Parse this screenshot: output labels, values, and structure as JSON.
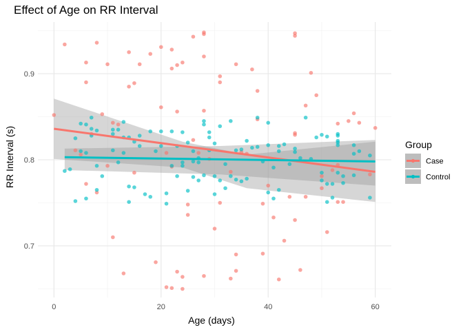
{
  "chart_data": {
    "type": "scatter",
    "title": "Effect of Age on RR Interval",
    "xlabel": "Age (days)",
    "ylabel": "RR Interval (s)",
    "xlim": [
      -3,
      63
    ],
    "ylim": [
      0.64,
      0.96
    ],
    "x_ticks": [
      0,
      20,
      40,
      60
    ],
    "y_ticks": [
      0.7,
      0.8,
      0.9
    ],
    "grid": true,
    "legend": {
      "title": "Group",
      "placement": "right"
    },
    "series": [
      {
        "name": "Case",
        "color": "#F8766D",
        "points": [
          [
            0,
            0.852
          ],
          [
            2,
            0.934
          ],
          [
            4,
            0.811
          ],
          [
            5,
            0.806
          ],
          [
            6,
            0.913
          ],
          [
            6,
            0.89
          ],
          [
            6,
            0.772
          ],
          [
            7,
            0.83
          ],
          [
            8,
            0.936
          ],
          [
            8,
            0.762
          ],
          [
            9,
            0.853
          ],
          [
            10,
            0.911
          ],
          [
            10,
            0.793
          ],
          [
            11,
            0.71
          ],
          [
            11,
            0.843
          ],
          [
            12,
            0.841
          ],
          [
            13,
            0.668
          ],
          [
            14,
            0.925
          ],
          [
            14,
            0.885
          ],
          [
            15,
            0.889
          ],
          [
            15,
            0.785
          ],
          [
            16,
            0.911
          ],
          [
            18,
            0.923
          ],
          [
            19,
            0.681
          ],
          [
            20,
            0.931
          ],
          [
            20,
            0.861
          ],
          [
            21,
            0.652
          ],
          [
            21,
            0.808
          ],
          [
            22,
            0.928
          ],
          [
            22,
            0.906
          ],
          [
            22,
            0.651
          ],
          [
            22,
            0.792
          ],
          [
            23,
            0.91
          ],
          [
            23,
            0.856
          ],
          [
            23,
            0.67
          ],
          [
            24,
            0.913
          ],
          [
            24,
            0.65
          ],
          [
            24,
            0.664
          ],
          [
            25,
            0.748
          ],
          [
            25,
            0.736
          ],
          [
            26,
            0.943
          ],
          [
            26,
            0.823
          ],
          [
            27,
            0.808
          ],
          [
            28,
            0.948
          ],
          [
            28,
            0.946
          ],
          [
            28,
            0.92
          ],
          [
            28,
            0.857
          ],
          [
            28,
            0.665
          ],
          [
            29,
            0.801
          ],
          [
            30,
            0.72
          ],
          [
            31,
            0.897
          ],
          [
            31,
            0.89
          ],
          [
            31,
            0.75
          ],
          [
            33,
            0.786
          ],
          [
            33,
            0.662
          ],
          [
            34,
            0.911
          ],
          [
            34,
            0.69
          ],
          [
            34,
            0.671
          ],
          [
            35,
            0.809
          ],
          [
            36,
            0.807
          ],
          [
            37,
            0.905
          ],
          [
            38,
            0.88
          ],
          [
            38,
            0.847
          ],
          [
            39,
            0.749
          ],
          [
            39,
            0.691
          ],
          [
            40,
            0.77
          ],
          [
            41,
            0.733
          ],
          [
            42,
            0.661
          ],
          [
            43,
            0.706
          ],
          [
            44,
            0.757
          ],
          [
            45,
            0.947
          ],
          [
            45,
            0.944
          ],
          [
            45,
            0.831
          ],
          [
            45,
            0.829
          ],
          [
            45,
            0.73
          ],
          [
            46,
            0.672
          ],
          [
            47,
            0.863
          ],
          [
            47,
            0.757
          ],
          [
            48,
            0.901
          ],
          [
            49,
            0.875
          ],
          [
            50,
            0.767
          ],
          [
            50,
            0.781
          ],
          [
            51,
            0.716
          ],
          [
            52,
            0.788
          ],
          [
            53,
            0.842
          ],
          [
            53,
            0.794
          ],
          [
            53,
            0.751
          ],
          [
            54,
            0.751
          ],
          [
            55,
            0.845
          ],
          [
            56,
            0.854
          ],
          [
            57,
            0.843
          ],
          [
            59,
            0.783
          ],
          [
            60,
            0.837
          ]
        ],
        "trend": {
          "x": [
            0,
            60
          ],
          "y": [
            0.836,
            0.786
          ]
        },
        "band": {
          "upper": [
            0.871,
            0.821,
            0.806,
            0.821
          ],
          "lower": [
            0.801,
            0.791,
            0.767,
            0.751
          ],
          "x": [
            0,
            24,
            36,
            60
          ]
        }
      },
      {
        "name": "Control",
        "color": "#00BFC4",
        "points": [
          [
            2,
            0.787
          ],
          [
            3,
            0.789
          ],
          [
            4,
            0.752
          ],
          [
            4,
            0.825
          ],
          [
            5,
            0.842
          ],
          [
            5,
            0.81
          ],
          [
            6,
            0.841
          ],
          [
            6,
            0.808
          ],
          [
            6,
            0.755
          ],
          [
            7,
            0.849
          ],
          [
            7,
            0.836
          ],
          [
            7,
            0.828
          ],
          [
            8,
            0.834
          ],
          [
            8,
            0.793
          ],
          [
            8,
            0.765
          ],
          [
            9,
            0.781
          ],
          [
            11,
            0.835
          ],
          [
            11,
            0.83
          ],
          [
            11,
            0.811
          ],
          [
            12,
            0.835
          ],
          [
            12,
            0.797
          ],
          [
            13,
            0.844
          ],
          [
            13,
            0.808
          ],
          [
            13,
            0.826
          ],
          [
            14,
            0.826
          ],
          [
            14,
            0.769
          ],
          [
            14,
            0.751
          ],
          [
            15,
            0.768
          ],
          [
            15,
            0.821
          ],
          [
            16,
            0.828
          ],
          [
            16,
            0.816
          ],
          [
            17,
            0.76
          ],
          [
            18,
            0.757
          ],
          [
            18,
            0.833
          ],
          [
            19,
            0.81
          ],
          [
            20,
            0.833
          ],
          [
            20,
            0.816
          ],
          [
            21,
            0.761
          ],
          [
            21,
            0.749
          ],
          [
            22,
            0.833
          ],
          [
            22,
            0.793
          ],
          [
            23,
            0.816
          ],
          [
            23,
            0.781
          ],
          [
            24,
            0.832
          ],
          [
            24,
            0.797
          ],
          [
            24,
            0.793
          ],
          [
            25,
            0.82
          ],
          [
            25,
            0.764
          ],
          [
            26,
            0.81
          ],
          [
            26,
            0.798
          ],
          [
            26,
            0.78
          ],
          [
            27,
            0.802
          ],
          [
            27,
            0.797
          ],
          [
            27,
            0.776
          ],
          [
            28,
            0.845
          ],
          [
            28,
            0.841
          ],
          [
            28,
            0.782
          ],
          [
            29,
            0.832
          ],
          [
            29,
            0.826
          ],
          [
            29,
            0.811
          ],
          [
            30,
            0.819
          ],
          [
            30,
            0.781
          ],
          [
            30,
            0.76
          ],
          [
            31,
            0.839
          ],
          [
            31,
            0.776
          ],
          [
            32,
            0.767
          ],
          [
            32,
            0.795
          ],
          [
            33,
            0.845
          ],
          [
            33,
            0.781
          ],
          [
            34,
            0.811
          ],
          [
            34,
            0.777
          ],
          [
            35,
            0.775
          ],
          [
            35,
            0.812
          ],
          [
            36,
            0.778
          ],
          [
            36,
            0.822
          ],
          [
            37,
            0.814
          ],
          [
            38,
            0.815
          ],
          [
            38,
            0.849
          ],
          [
            39,
            0.798
          ],
          [
            40,
            0.843
          ],
          [
            40,
            0.817
          ],
          [
            40,
            0.762
          ],
          [
            41,
            0.755
          ],
          [
            41,
            0.791
          ],
          [
            42,
            0.816
          ],
          [
            42,
            0.81
          ],
          [
            42,
            0.765
          ],
          [
            43,
            0.818
          ],
          [
            44,
            0.795
          ],
          [
            45,
            0.813
          ],
          [
            45,
            0.809
          ],
          [
            46,
            0.802
          ],
          [
            47,
            0.849
          ],
          [
            48,
            0.801
          ],
          [
            49,
            0.826
          ],
          [
            50,
            0.829
          ],
          [
            50,
            0.785
          ],
          [
            50,
            0.776
          ],
          [
            51,
            0.772
          ],
          [
            51,
            0.751
          ],
          [
            51,
            0.827
          ],
          [
            52,
            0.756
          ],
          [
            52,
            0.772
          ],
          [
            53,
            0.83
          ],
          [
            53,
            0.828
          ],
          [
            53,
            0.822
          ],
          [
            53,
            0.82
          ],
          [
            53,
            0.817
          ],
          [
            53,
            0.785
          ],
          [
            54,
            0.773
          ],
          [
            54,
            0.781
          ],
          [
            56,
            0.817
          ],
          [
            56,
            0.807
          ],
          [
            56,
            0.782
          ],
          [
            57,
            0.81
          ],
          [
            59,
            0.805
          ],
          [
            59,
            0.756
          ]
        ],
        "trend": {
          "x": [
            2,
            60
          ],
          "y": [
            0.803,
            0.798
          ]
        },
        "band": {
          "upper": [
            0.813,
            0.816,
            0.823
          ],
          "lower": [
            0.788,
            0.783,
            0.77
          ],
          "x": [
            2,
            31,
            60
          ]
        }
      }
    ]
  }
}
